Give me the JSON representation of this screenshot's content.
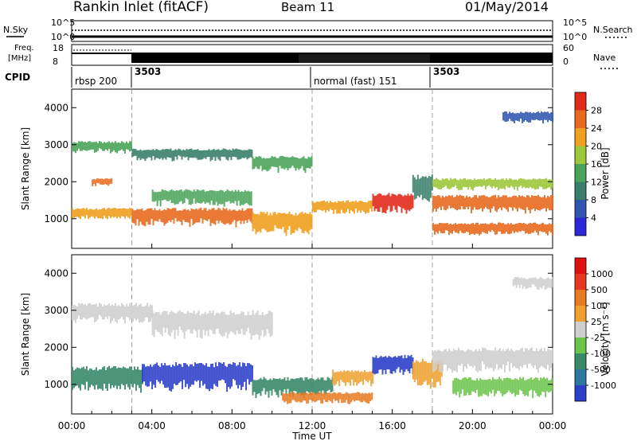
{
  "header": {
    "title": "Rankin Inlet (fitACF)",
    "beam": "Beam 11",
    "date": "01/May/2014"
  },
  "top_panels": {
    "nsky_label": "N.Sky",
    "nsearch_label": "N.Search",
    "noise_ticks": [
      "10^5",
      "10^0"
    ],
    "freq_label_1": "Freq.",
    "freq_label_2": "[MHz]",
    "freq_ticks": [
      "18",
      "8"
    ],
    "nave_label": "Nave",
    "nave_ticks": [
      "60",
      "0"
    ],
    "cpid_label": "CPID",
    "cpid_segments": [
      {
        "label": "rbsp 200",
        "start_h": 0,
        "end_h": 3
      },
      {
        "label": "3503",
        "start_h": 3,
        "end_h": 12
      },
      {
        "label": "normal (fast) 151",
        "start_h": 12,
        "end_h": 18
      },
      {
        "label": "3503",
        "start_h": 18,
        "end_h": 24
      }
    ]
  },
  "chart_data": [
    {
      "type": "heatmap",
      "panel": "power",
      "ylabel": "Slant Range [km]",
      "y_ticks": [
        "1000",
        "2000",
        "3000",
        "4000"
      ],
      "ylim": [
        200,
        4500
      ],
      "x_range_h": [
        0,
        24
      ],
      "colorbar_label": "Power [dB]",
      "colorbar_ticks": [
        "4",
        "8",
        "12",
        "16",
        "20",
        "24",
        "28"
      ],
      "colors": [
        "#2b27d8",
        "#2f55b0",
        "#3a7f6a",
        "#4aa35a",
        "#9cc83a",
        "#f0a020",
        "#e86a20",
        "#e12a1a"
      ],
      "bands": [
        {
          "start_h": 0.0,
          "end_h": 3.0,
          "range_km": [
            2800,
            3100
          ],
          "level": 3
        },
        {
          "start_h": 0.0,
          "end_h": 3.0,
          "range_km": [
            1000,
            1300
          ],
          "level": 5
        },
        {
          "start_h": 1.0,
          "end_h": 2.0,
          "range_km": [
            1900,
            2100
          ],
          "level": 6
        },
        {
          "start_h": 3.0,
          "end_h": 9.0,
          "range_km": [
            850,
            1300
          ],
          "level": 6
        },
        {
          "start_h": 3.0,
          "end_h": 9.0,
          "range_km": [
            2600,
            2900
          ],
          "level": 2
        },
        {
          "start_h": 4.0,
          "end_h": 9.0,
          "range_km": [
            1400,
            1800
          ],
          "level": 3
        },
        {
          "start_h": 9.0,
          "end_h": 12.0,
          "range_km": [
            600,
            1200
          ],
          "level": 5
        },
        {
          "start_h": 9.0,
          "end_h": 12.0,
          "range_km": [
            2300,
            2700
          ],
          "level": 3
        },
        {
          "start_h": 12.0,
          "end_h": 15.0,
          "range_km": [
            1150,
            1500
          ],
          "level": 5
        },
        {
          "start_h": 15.0,
          "end_h": 17.0,
          "range_km": [
            1200,
            1700
          ],
          "level": 7
        },
        {
          "start_h": 17.0,
          "end_h": 18.0,
          "range_km": [
            1500,
            2200
          ],
          "level": 2
        },
        {
          "start_h": 18.0,
          "end_h": 24.0,
          "range_km": [
            1200,
            1650
          ],
          "level": 6
        },
        {
          "start_h": 18.0,
          "end_h": 24.0,
          "range_km": [
            1800,
            2100
          ],
          "level": 4
        },
        {
          "start_h": 18.0,
          "end_h": 24.0,
          "range_km": [
            600,
            900
          ],
          "level": 6
        },
        {
          "start_h": 21.5,
          "end_h": 24.0,
          "range_km": [
            3600,
            3900
          ],
          "level": 1
        }
      ]
    },
    {
      "type": "heatmap",
      "panel": "velocity",
      "ylabel": "Slant Range [km]",
      "y_ticks": [
        "1000",
        "2000",
        "3000",
        "4000"
      ],
      "ylim": [
        200,
        4500
      ],
      "x_range_h": [
        0,
        24
      ],
      "colorbar_label": "Velocity [m s⁻¹]",
      "colorbar_ticks": [
        "1000",
        "500",
        "100",
        "25",
        "-25",
        "-100",
        "-500",
        "-1000"
      ],
      "colors": [
        "#2b3fc8",
        "#2a78a0",
        "#3a8a6a",
        "#6cc44a",
        "#cfcfcf",
        "#f0a030",
        "#e87a20",
        "#e83a20",
        "#e01010"
      ],
      "bands": [
        {
          "start_h": 0.0,
          "end_h": 4.0,
          "range_km": [
            2700,
            3200
          ],
          "level": 4
        },
        {
          "start_h": 0.0,
          "end_h": 3.5,
          "range_km": [
            850,
            1500
          ],
          "level": 2
        },
        {
          "start_h": 3.5,
          "end_h": 9.0,
          "range_km": [
            900,
            1600
          ],
          "level": 0
        },
        {
          "start_h": 4.0,
          "end_h": 10.0,
          "range_km": [
            2300,
            3000
          ],
          "level": 4
        },
        {
          "start_h": 9.0,
          "end_h": 13.0,
          "range_km": [
            700,
            1200
          ],
          "level": 2
        },
        {
          "start_h": 10.5,
          "end_h": 15.0,
          "range_km": [
            500,
            800
          ],
          "level": 6
        },
        {
          "start_h": 13.0,
          "end_h": 15.0,
          "range_km": [
            1000,
            1400
          ],
          "level": 5
        },
        {
          "start_h": 15.0,
          "end_h": 17.0,
          "range_km": [
            1300,
            1800
          ],
          "level": 0
        },
        {
          "start_h": 17.0,
          "end_h": 18.5,
          "range_km": [
            1000,
            1700
          ],
          "level": 5
        },
        {
          "start_h": 18.0,
          "end_h": 24.0,
          "range_km": [
            1400,
            2000
          ],
          "level": 4
        },
        {
          "start_h": 19.0,
          "end_h": 24.0,
          "range_km": [
            700,
            1200
          ],
          "level": 3
        },
        {
          "start_h": 22.0,
          "end_h": 24.0,
          "range_km": [
            3600,
            3900
          ],
          "level": 4
        }
      ]
    }
  ],
  "x_axis": {
    "label": "Time UT",
    "ticks": [
      "00:00",
      "04:00",
      "08:00",
      "12:00",
      "16:00",
      "20:00",
      "00:00"
    ]
  }
}
